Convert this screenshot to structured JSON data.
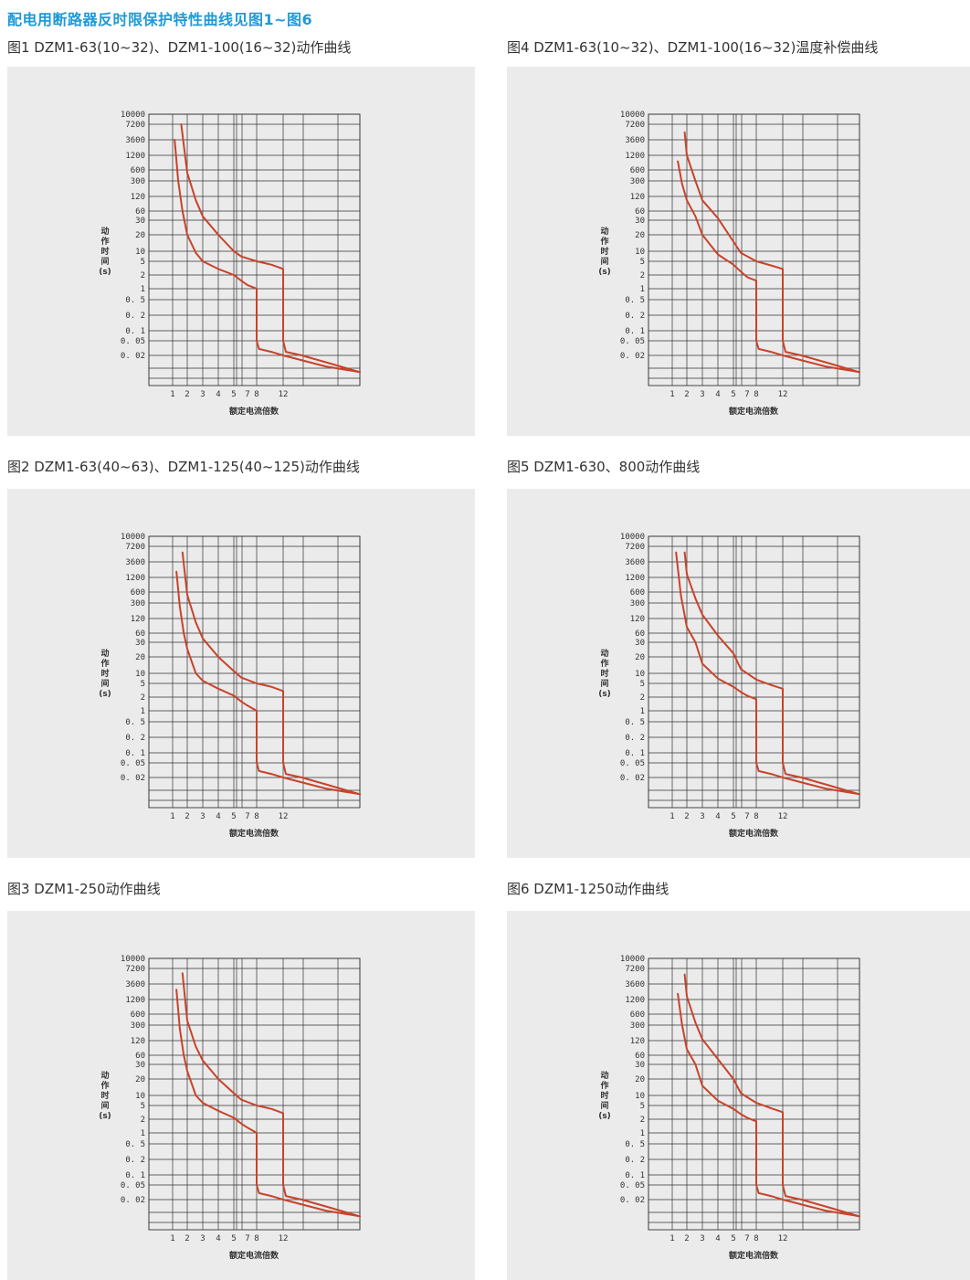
{
  "heading": "配电用断路器反时限保护特性曲线见图1~图6",
  "axes": {
    "y_ticks": [
      "10000",
      "7200",
      "3600",
      "1200",
      "600",
      "300",
      "120",
      "60",
      "30",
      "20",
      "10",
      "5",
      "2",
      "1",
      "0. 5",
      "0. 2",
      "0. 1",
      "0. 05",
      "0. 02"
    ],
    "x_ticks": [
      "1",
      "2",
      "3",
      "4",
      "5",
      "7",
      "8",
      "12"
    ],
    "ylabel_chars": [
      "动",
      "作",
      "时",
      "间",
      "(s)"
    ],
    "xlabel": "额定电流倍数"
  },
  "colors": {
    "curve": "#c8432a",
    "panel": "#ebebeb",
    "heading": "#1e9ad6"
  },
  "chart_data": [
    {
      "title": "图1 DZM1-63(10~32)、DZM1-100(16~32)动作曲线",
      "type": "line",
      "xlabel": "额定电流倍数",
      "ylabel": "动作时间(s)",
      "series": [
        {
          "x": [
            1.1,
            1.3,
            1.6,
            2,
            2.5,
            3,
            4,
            5,
            6,
            7,
            8,
            8,
            8.3,
            10,
            12,
            20,
            30
          ],
          "y": [
            3600,
            300,
            60,
            20,
            9,
            5,
            3,
            2,
            1.5,
            1.2,
            1,
            0.05,
            0.03,
            0.025,
            0.02,
            0.01,
            0.007
          ]
        },
        {
          "x": [
            1.5,
            2,
            2.5,
            3,
            4,
            5,
            6,
            8,
            10,
            12,
            12,
            12.4,
            15,
            20,
            30
          ],
          "y": [
            7200,
            500,
            100,
            40,
            20,
            10,
            7,
            5,
            4,
            3,
            0.05,
            0.025,
            0.02,
            0.013,
            0.007
          ]
        }
      ]
    },
    {
      "title": "图2 DZM1-63(40~63)、DZM1-125(40~125)动作曲线",
      "type": "line",
      "xlabel": "额定电流倍数",
      "ylabel": "动作时间(s)",
      "series": [
        {
          "x": [
            1.2,
            1.4,
            1.7,
            2,
            2.5,
            3,
            4,
            5,
            6,
            7,
            8,
            8,
            8.3,
            10,
            12,
            20,
            30
          ],
          "y": [
            1800,
            250,
            60,
            25,
            10,
            6,
            3.5,
            2.2,
            1.6,
            1.3,
            1,
            0.05,
            0.03,
            0.025,
            0.02,
            0.01,
            0.007
          ]
        },
        {
          "x": [
            1.6,
            2,
            2.5,
            3,
            4,
            5,
            6,
            8,
            10,
            12,
            12,
            12.4,
            15,
            20,
            30
          ],
          "y": [
            5500,
            500,
            100,
            40,
            20,
            11,
            7.5,
            5,
            4,
            3,
            0.05,
            0.025,
            0.02,
            0.013,
            0.007
          ]
        }
      ]
    },
    {
      "title": "图3 DZM1-250动作曲线",
      "type": "line",
      "xlabel": "额定电流倍数",
      "ylabel": "动作时间(s)",
      "series": [
        {
          "x": [
            1.2,
            1.4,
            1.7,
            2,
            2.5,
            3,
            4,
            5,
            6,
            7,
            8,
            8,
            8.3,
            10,
            12,
            20,
            30
          ],
          "y": [
            2400,
            250,
            60,
            25,
            10,
            6,
            3.5,
            2.2,
            1.6,
            1.3,
            1,
            0.05,
            0.03,
            0.025,
            0.02,
            0.01,
            0.007
          ]
        },
        {
          "x": [
            1.6,
            2,
            2.5,
            3,
            4,
            5,
            6,
            8,
            10,
            12,
            12,
            12.4,
            15,
            20,
            30
          ],
          "y": [
            5800,
            400,
            90,
            40,
            20,
            11,
            7.5,
            5,
            4,
            3,
            0.05,
            0.025,
            0.02,
            0.013,
            0.007
          ]
        }
      ]
    },
    {
      "title": "图4 DZM1-63(10~32)、DZM1-100(16~32)温度补偿曲线",
      "type": "line",
      "xlabel": "额定电流倍数",
      "ylabel": "动作时间(s)",
      "series": [
        {
          "x": [
            1.3,
            1.6,
            2,
            2.5,
            3,
            4,
            5,
            6,
            7,
            8,
            8,
            8.3,
            10,
            12,
            20,
            30
          ],
          "y": [
            900,
            250,
            100,
            40,
            20,
            8,
            4,
            2.5,
            1.8,
            1.5,
            0.05,
            0.03,
            0.025,
            0.02,
            0.01,
            0.007
          ]
        },
        {
          "x": [
            1.8,
            2,
            2.5,
            3,
            4,
            5,
            6,
            8,
            10,
            12,
            12,
            12.4,
            15,
            20,
            30
          ],
          "y": [
            5000,
            1200,
            300,
            100,
            35,
            15,
            9,
            5,
            3.8,
            3,
            0.05,
            0.025,
            0.02,
            0.013,
            0.007
          ]
        }
      ]
    },
    {
      "title": "图5 DZM1-630、800动作曲线",
      "type": "line",
      "xlabel": "额定电流倍数",
      "ylabel": "动作时间(s)",
      "series": [
        {
          "x": [
            1.2,
            1.5,
            2,
            2.5,
            3,
            4,
            5,
            6,
            7,
            8,
            8,
            8.3,
            10,
            12,
            20,
            30
          ],
          "y": [
            5500,
            500,
            80,
            30,
            15,
            7,
            4,
            2.8,
            2.2,
            1.8,
            0.05,
            0.03,
            0.025,
            0.02,
            0.01,
            0.007
          ]
        },
        {
          "x": [
            1.8,
            2,
            2.5,
            3,
            4,
            5,
            6,
            8,
            10,
            12,
            12,
            12.4,
            15,
            20,
            30
          ],
          "y": [
            5500,
            1500,
            400,
            150,
            50,
            22,
            12,
            6.5,
            4.5,
            3.5,
            0.05,
            0.025,
            0.02,
            0.013,
            0.007
          ]
        }
      ]
    },
    {
      "title": "图6 DZM1-1250动作曲线",
      "type": "line",
      "xlabel": "额定电流倍数",
      "ylabel": "动作时间(s)",
      "series": [
        {
          "x": [
            1.3,
            1.6,
            2,
            2.5,
            3,
            4,
            5,
            6,
            7,
            8,
            8,
            8.3,
            10,
            12,
            20,
            30
          ],
          "y": [
            1800,
            300,
            80,
            30,
            15,
            7,
            4,
            2.8,
            2.2,
            1.8,
            0.05,
            0.03,
            0.025,
            0.02,
            0.01,
            0.007
          ]
        },
        {
          "x": [
            1.8,
            2,
            2.5,
            3,
            4,
            5,
            6,
            8,
            10,
            12,
            12,
            12.4,
            15,
            20,
            30
          ],
          "y": [
            5500,
            1500,
            350,
            130,
            45,
            20,
            11,
            6,
            4.2,
            3.2,
            0.05,
            0.025,
            0.02,
            0.013,
            0.007
          ]
        }
      ]
    }
  ]
}
